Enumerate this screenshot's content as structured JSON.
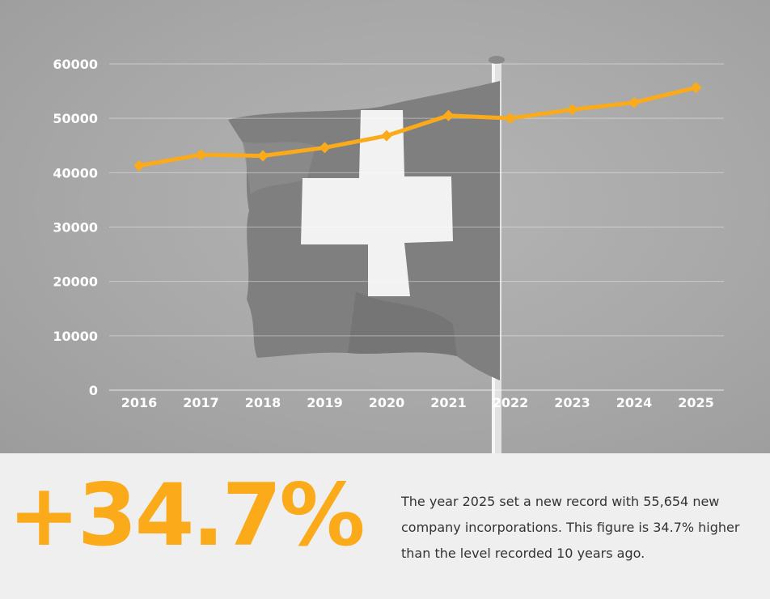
{
  "colors": {
    "accent": "#fbaa1a",
    "tick_text": "#ffffff",
    "body_text": "#333333"
  },
  "background_image": "swiss-flag-photo-grayscale",
  "chart_data": {
    "type": "line",
    "x": [
      "2016",
      "2017",
      "2018",
      "2019",
      "2020",
      "2021",
      "2022",
      "2023",
      "2024",
      "2025"
    ],
    "series": [
      {
        "values": [
          41300,
          43300,
          43100,
          44600,
          46800,
          50500,
          50000,
          51600,
          52900,
          55654
        ]
      }
    ],
    "yticks": [
      "0",
      "10000",
      "20000",
      "30000",
      "40000",
      "50000",
      "60000"
    ],
    "ylim": [
      0,
      60000
    ],
    "grid": true,
    "marker": "diamond"
  },
  "highlight": {
    "value": "+34.7%",
    "description": "The year 2025 set a new record with 55,654 new company incorporations. This figure is 34.7% higher than the level recorded 10 years ago."
  }
}
